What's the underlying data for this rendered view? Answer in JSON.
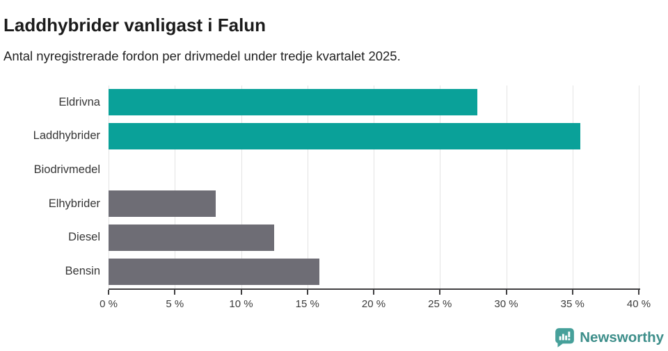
{
  "header": {
    "title": "Laddhybrider vanligast i Falun",
    "subtitle": "Antal nyregistrerade fordon per drivmedel under tredje kvartalet 2025."
  },
  "chart_data": {
    "type": "bar",
    "orientation": "horizontal",
    "title": "Laddhybrider vanligast i Falun",
    "subtitle": "Antal nyregistrerade fordon per drivmedel under tredje kvartalet 2025.",
    "categories": [
      "Eldrivna",
      "Laddhybrider",
      "Biodrivmedel",
      "Elhybrider",
      "Diesel",
      "Bensin"
    ],
    "values": [
      27.8,
      35.6,
      0,
      8.1,
      12.5,
      15.9
    ],
    "unit": "%",
    "bar_colors": [
      "#0aa199",
      "#0aa199",
      "#0aa199",
      "#6e6d75",
      "#6e6d75",
      "#6e6d75"
    ],
    "xlim": [
      0,
      40
    ],
    "xticks": [
      0,
      5,
      10,
      15,
      20,
      25,
      30,
      35,
      40
    ],
    "xtick_labels": [
      "0 %",
      "5 %",
      "10 %",
      "15 %",
      "20 %",
      "25 %",
      "30 %",
      "35 %",
      "40 %"
    ],
    "grid": true,
    "legend": false
  },
  "colors": {
    "accent_teal": "#0aa199",
    "neutral_gray": "#6e6d75",
    "gridline": "#e3e3e3",
    "axis": "#403f41",
    "brand_teal": "#3d8e8a"
  },
  "footer": {
    "brand": "Newsworthy",
    "logo_icon": "bar-chart-speech-bubble-icon"
  }
}
